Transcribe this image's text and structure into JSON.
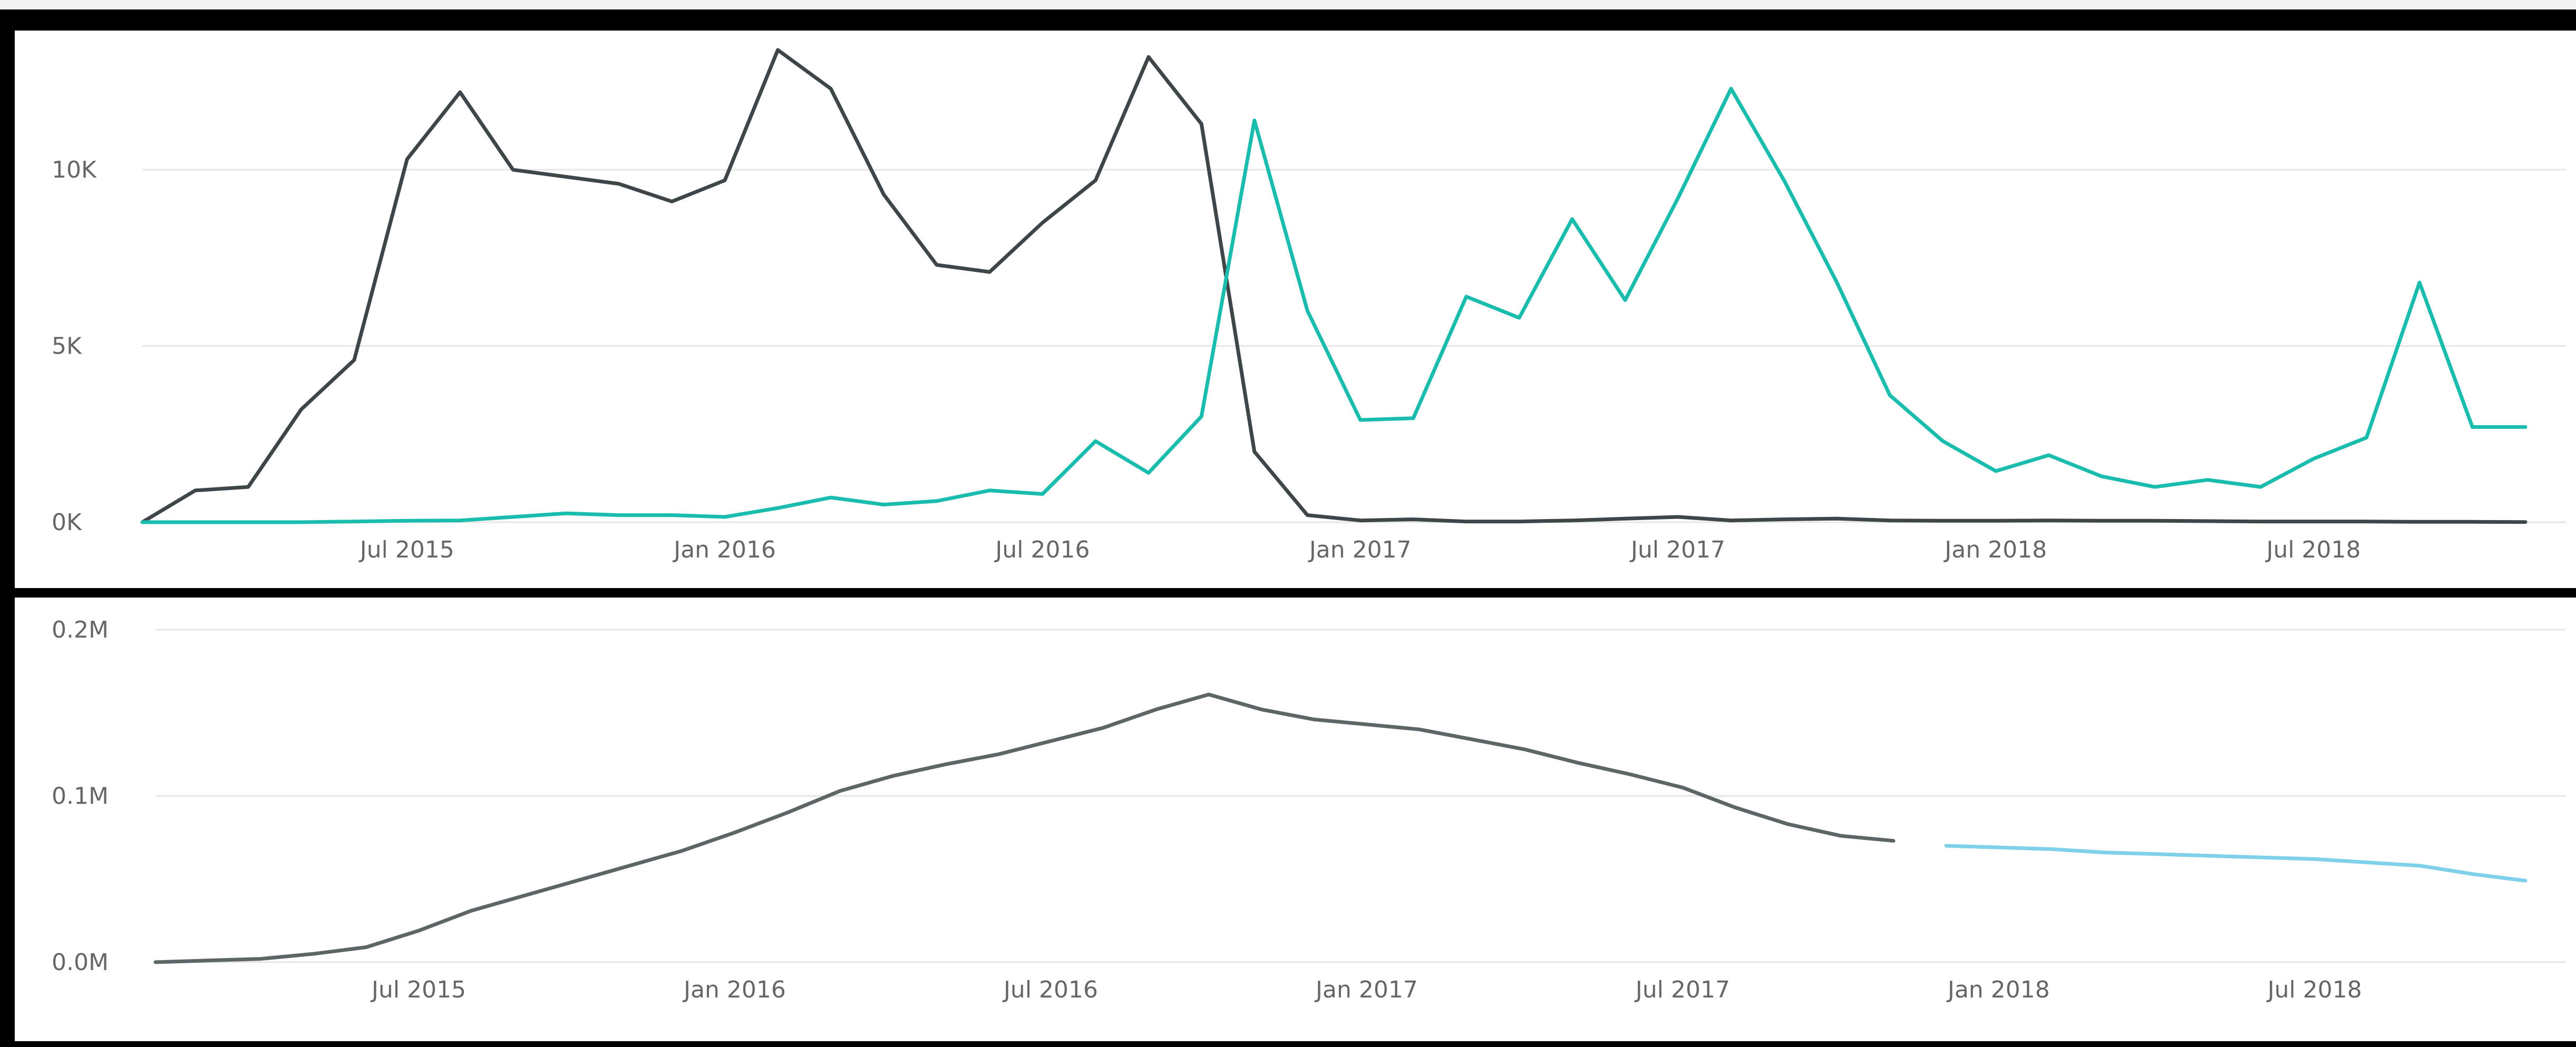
{
  "chart_data": [
    {
      "type": "line",
      "title": "",
      "xlabel": "",
      "ylabel": "",
      "x_axis": {
        "type": "date",
        "ticks": [
          "Jul 2015",
          "Jan 2016",
          "Jul 2016",
          "Jan 2017",
          "Jul 2017",
          "Jan 2018",
          "Jul 2018"
        ],
        "range": [
          "2015-02-01",
          "2018-11-01"
        ]
      },
      "y_axis": {
        "ticks": [
          {
            "value": 0,
            "label": "0K"
          },
          {
            "value": 5000,
            "label": "5K"
          },
          {
            "value": 10000,
            "label": "10K"
          }
        ],
        "range": [
          0,
          13800
        ]
      },
      "grid": true,
      "legend": "none",
      "x": [
        "2015-02-01",
        "2015-03-01",
        "2015-04-01",
        "2015-05-01",
        "2015-06-01",
        "2015-07-01",
        "2015-08-01",
        "2015-09-01",
        "2015-10-01",
        "2015-11-01",
        "2015-12-01",
        "2016-01-01",
        "2016-02-01",
        "2016-03-01",
        "2016-04-01",
        "2016-05-01",
        "2016-06-01",
        "2016-07-01",
        "2016-08-01",
        "2016-09-01",
        "2016-10-01",
        "2016-11-01",
        "2016-12-01",
        "2017-01-01",
        "2017-02-01",
        "2017-03-01",
        "2017-04-01",
        "2017-05-01",
        "2017-06-01",
        "2017-07-01",
        "2017-08-01",
        "2017-09-01",
        "2017-10-01",
        "2017-11-01",
        "2017-12-01",
        "2018-01-01",
        "2018-02-01",
        "2018-03-01",
        "2018-04-01",
        "2018-05-01",
        "2018-06-01",
        "2018-07-01",
        "2018-08-01",
        "2018-09-01",
        "2018-10-01",
        "2018-11-01"
      ],
      "series": [
        {
          "color": "#3e4649",
          "values": [
            0,
            900,
            1000,
            3200,
            4600,
            10300,
            12200,
            10000,
            9800,
            9600,
            9100,
            9700,
            13400,
            12300,
            9300,
            7300,
            7100,
            8500,
            9700,
            13200,
            11300,
            2000,
            200,
            50,
            80,
            20,
            20,
            50,
            100,
            150,
            50,
            80,
            100,
            50,
            40,
            40,
            50,
            40,
            40,
            30,
            20,
            20,
            20,
            10,
            10,
            5
          ]
        },
        {
          "color": "#1abcad",
          "values": [
            0,
            0,
            0,
            0,
            20,
            40,
            50,
            150,
            250,
            200,
            200,
            150,
            400,
            700,
            500,
            600,
            900,
            800,
            2300,
            1400,
            3000,
            11400,
            6000,
            2900,
            2950,
            6400,
            5800,
            8600,
            6300,
            9200,
            12300,
            9700,
            6800,
            3600,
            2300,
            1450,
            1900,
            1300,
            1000,
            1200,
            1000,
            1800,
            2400,
            6800,
            2700,
            2700
          ]
        }
      ]
    },
    {
      "type": "line",
      "title": "",
      "xlabel": "",
      "ylabel": "",
      "x_axis": {
        "type": "date",
        "ticks": [
          "Jul 2015",
          "Jan 2016",
          "Jul 2016",
          "Jan 2017",
          "Jul 2017",
          "Jan 2018",
          "Jul 2018"
        ],
        "range": [
          "2015-02-01",
          "2018-11-01"
        ]
      },
      "y_axis": {
        "ticks": [
          {
            "value": 0,
            "label": "0.0M"
          },
          {
            "value": 100000,
            "label": "0.1M"
          },
          {
            "value": 200000,
            "label": "0.2M"
          }
        ],
        "range": [
          0,
          200000
        ]
      },
      "grid": true,
      "legend": "none",
      "series": [
        {
          "color": "#5d6566",
          "x": [
            "2015-02-01",
            "2015-03-01",
            "2015-04-01",
            "2015-05-01",
            "2015-06-01",
            "2015-07-01",
            "2015-08-01",
            "2015-09-01",
            "2015-10-01",
            "2015-11-01",
            "2015-12-01",
            "2016-01-01",
            "2016-02-01",
            "2016-03-01",
            "2016-04-01",
            "2016-05-01",
            "2016-06-01",
            "2016-07-01",
            "2016-08-01",
            "2016-09-01",
            "2016-10-01",
            "2016-11-01",
            "2016-12-01",
            "2017-01-01",
            "2017-02-01",
            "2017-03-01",
            "2017-04-01",
            "2017-05-01",
            "2017-06-01",
            "2017-07-01",
            "2017-08-01",
            "2017-09-01",
            "2017-10-01",
            "2017-11-01"
          ],
          "values": [
            0,
            1000,
            2000,
            5000,
            9000,
            19000,
            31000,
            40000,
            49000,
            58000,
            67000,
            78000,
            90000,
            103000,
            112000,
            119000,
            125000,
            133000,
            141000,
            152000,
            161000,
            152000,
            146000,
            143000,
            140000,
            134000,
            128000,
            120000,
            113000,
            105000,
            93000,
            83000,
            76000,
            73000
          ]
        },
        {
          "color": "#7fd0ea",
          "x": [
            "2017-12-01",
            "2018-01-01",
            "2018-02-01",
            "2018-03-01",
            "2018-04-01",
            "2018-05-01",
            "2018-06-01",
            "2018-07-01",
            "2018-08-01",
            "2018-09-01",
            "2018-10-01",
            "2018-11-01"
          ],
          "values": [
            70000,
            69000,
            68000,
            66000,
            65000,
            64000,
            63000,
            62000,
            60000,
            58000,
            53000,
            49000
          ]
        }
      ]
    }
  ]
}
